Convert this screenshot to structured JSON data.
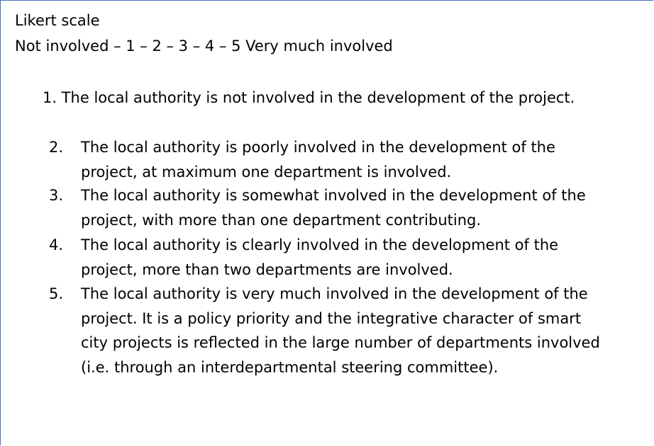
{
  "document": {
    "title": "Likert scale",
    "scale_line": "Not involved – 1 – 2 – 3 – 4 – 5 Very much involved",
    "items": [
      {
        "number": "1.",
        "text": "The local authority is not involved in the development of the project."
      },
      {
        "number": "2.",
        "text": "The local authority is poorly involved in the development of the project, at maximum one department is involved."
      },
      {
        "number": "3.",
        "text": "The local authority is somewhat involved in the development of the project, with more than one department contributing."
      },
      {
        "number": "4.",
        "text": "The local authority is clearly involved in the development of the project, more than two departments are involved."
      },
      {
        "number": "5.",
        "text": "The local authority is very much involved in the development of the project. It is a policy priority and the integrative character of smart city projects is reflected in the large number of departments involved (i.e. through an interdepartmental steering committee)."
      }
    ]
  },
  "colors": {
    "border": "#4472c4",
    "text": "#000000",
    "background": "#ffffff"
  }
}
